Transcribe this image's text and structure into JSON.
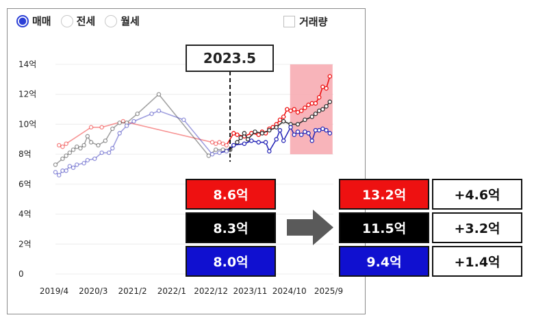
{
  "tabs": [
    {
      "label": "매매",
      "active": true
    },
    {
      "label": "전세",
      "active": false
    },
    {
      "label": "월세",
      "active": false
    }
  ],
  "volume_toggle": {
    "label": "거래량",
    "checked": false
  },
  "highlight_date": "2023.5",
  "before": [
    "8.6억",
    "8.3억",
    "8.0억"
  ],
  "after": [
    "13.2억",
    "11.5억",
    "9.4억"
  ],
  "change": [
    "+4.6억",
    "+3.2억",
    "+1.4억"
  ],
  "colors": {
    "red": "#ee1111",
    "black": "#000000",
    "blue": "#1010d0",
    "accent": "#2b3fd6",
    "highlight": "#f7a7ae"
  },
  "chart_data": {
    "type": "line",
    "y_unit": "억",
    "ylim": [
      0,
      14
    ],
    "yticks": [
      "0",
      "2억",
      "4억",
      "6억",
      "8억",
      "10억",
      "12억",
      "14억"
    ],
    "xlim": [
      "2019-04",
      "2025-10"
    ],
    "xticks": [
      "2019/4",
      "2020/3",
      "2021/2",
      "2022/1",
      "2022/12",
      "2023/11",
      "2024/10",
      "2025/9"
    ],
    "vertical_marker": "2023-05",
    "highlight_range": {
      "x": [
        "2024-11",
        "2025-09"
      ],
      "y": [
        8.0,
        14.0
      ]
    },
    "series": [
      {
        "color": "#ee1111",
        "points": [
          [
            "2019-05",
            8.6
          ],
          [
            "2019-06",
            8.5
          ],
          [
            "2019-07",
            8.7
          ],
          [
            "2020-02",
            9.8
          ],
          [
            "2020-05",
            9.8
          ],
          [
            "2020-11",
            10.2
          ],
          [
            "2022-12",
            8.8
          ],
          [
            "2023-01",
            8.7
          ],
          [
            "2023-02",
            8.8
          ],
          [
            "2023-03",
            8.7
          ],
          [
            "2023-04",
            8.6
          ],
          [
            "2023-06",
            9.4
          ],
          [
            "2023-07",
            9.3
          ],
          [
            "2023-09",
            9.2
          ],
          [
            "2023-11",
            9.4
          ],
          [
            "2024-01",
            9.3
          ],
          [
            "2024-02",
            9.5
          ],
          [
            "2024-03",
            9.4
          ],
          [
            "2024-04",
            9.7
          ],
          [
            "2024-05",
            9.8
          ],
          [
            "2024-06",
            10.0
          ],
          [
            "2024-07",
            10.3
          ],
          [
            "2024-08",
            10.5
          ],
          [
            "2024-09",
            11.0
          ],
          [
            "2024-10",
            10.9
          ],
          [
            "2024-11",
            11.0
          ],
          [
            "2024-12",
            10.8
          ],
          [
            "2025-01",
            10.9
          ],
          [
            "2025-02",
            11.1
          ],
          [
            "2025-03",
            11.3
          ],
          [
            "2025-04",
            11.4
          ],
          [
            "2025-05",
            11.4
          ],
          [
            "2025-06",
            11.8
          ],
          [
            "2025-07",
            12.5
          ],
          [
            "2025-08",
            12.4
          ],
          [
            "2025-09",
            13.2
          ]
        ]
      },
      {
        "color": "#333333",
        "points": [
          [
            "2019-04",
            7.3
          ],
          [
            "2019-06",
            7.7
          ],
          [
            "2019-07",
            7.9
          ],
          [
            "2019-08",
            8.1
          ],
          [
            "2019-09",
            8.3
          ],
          [
            "2019-10",
            8.5
          ],
          [
            "2019-11",
            8.4
          ],
          [
            "2019-12",
            8.6
          ],
          [
            "2020-01",
            9.2
          ],
          [
            "2020-02",
            8.8
          ],
          [
            "2020-04",
            8.6
          ],
          [
            "2020-06",
            8.9
          ],
          [
            "2020-08",
            9.7
          ],
          [
            "2020-10",
            10.1
          ],
          [
            "2020-12",
            10.1
          ],
          [
            "2021-03",
            10.7
          ],
          [
            "2021-09",
            12.0
          ],
          [
            "2022-11",
            7.9
          ],
          [
            "2023-01",
            8.3
          ],
          [
            "2023-03",
            8.3
          ],
          [
            "2023-05",
            8.3
          ],
          [
            "2023-07",
            8.8
          ],
          [
            "2023-08",
            9.1
          ],
          [
            "2023-09",
            9.4
          ],
          [
            "2023-10",
            9.0
          ],
          [
            "2023-12",
            9.5
          ],
          [
            "2024-02",
            9.4
          ],
          [
            "2024-04",
            9.6
          ],
          [
            "2024-06",
            9.8
          ],
          [
            "2024-08",
            10.2
          ],
          [
            "2024-10",
            10.0
          ],
          [
            "2024-12",
            10.0
          ],
          [
            "2025-02",
            10.3
          ],
          [
            "2025-04",
            10.5
          ],
          [
            "2025-05",
            10.7
          ],
          [
            "2025-06",
            10.9
          ],
          [
            "2025-07",
            11.0
          ],
          [
            "2025-08",
            11.2
          ],
          [
            "2025-09",
            11.5
          ]
        ]
      },
      {
        "color": "#2a2ab8",
        "points": [
          [
            "2019-04",
            6.8
          ],
          [
            "2019-05",
            6.6
          ],
          [
            "2019-06",
            6.9
          ],
          [
            "2019-07",
            6.9
          ],
          [
            "2019-08",
            7.2
          ],
          [
            "2019-09",
            7.1
          ],
          [
            "2019-10",
            7.3
          ],
          [
            "2019-12",
            7.4
          ],
          [
            "2020-01",
            7.6
          ],
          [
            "2020-03",
            7.7
          ],
          [
            "2020-05",
            8.1
          ],
          [
            "2020-07",
            8.1
          ],
          [
            "2020-08",
            8.4
          ],
          [
            "2020-10",
            9.4
          ],
          [
            "2020-12",
            9.9
          ],
          [
            "2021-02",
            10.2
          ],
          [
            "2021-07",
            10.7
          ],
          [
            "2021-09",
            10.9
          ],
          [
            "2022-04",
            10.3
          ],
          [
            "2022-12",
            8.0
          ],
          [
            "2023-02",
            8.1
          ],
          [
            "2023-04",
            8.2
          ],
          [
            "2023-06",
            8.6
          ],
          [
            "2023-09",
            8.7
          ],
          [
            "2023-11",
            8.9
          ],
          [
            "2024-01",
            8.8
          ],
          [
            "2024-03",
            8.8
          ],
          [
            "2024-04",
            8.2
          ],
          [
            "2024-06",
            9.0
          ],
          [
            "2024-07",
            9.6
          ],
          [
            "2024-08",
            8.9
          ],
          [
            "2024-10",
            9.8
          ],
          [
            "2024-11",
            9.3
          ],
          [
            "2024-12",
            9.5
          ],
          [
            "2025-01",
            9.3
          ],
          [
            "2025-02",
            9.5
          ],
          [
            "2025-03",
            9.4
          ],
          [
            "2025-04",
            8.9
          ],
          [
            "2025-05",
            9.6
          ],
          [
            "2025-06",
            9.6
          ],
          [
            "2025-07",
            9.7
          ],
          [
            "2025-08",
            9.6
          ],
          [
            "2025-09",
            9.4
          ]
        ]
      }
    ]
  }
}
